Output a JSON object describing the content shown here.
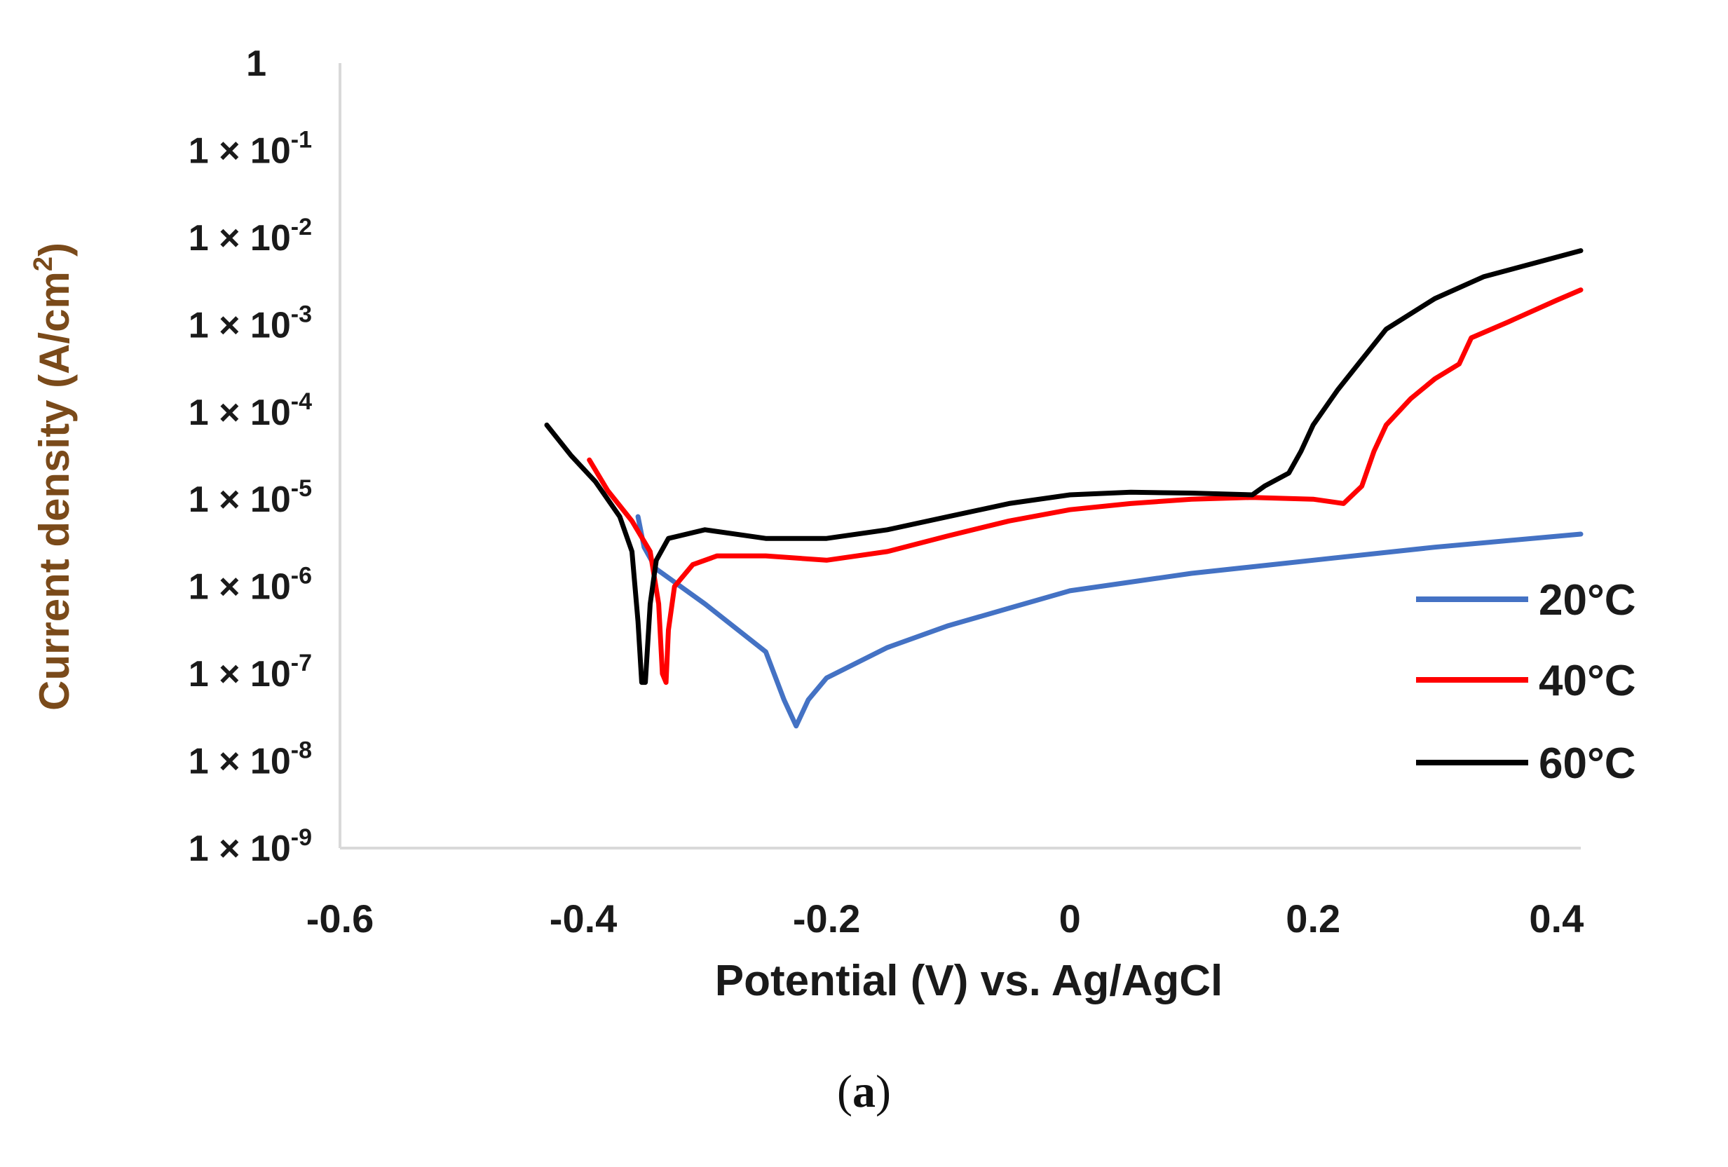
{
  "chart_data": {
    "type": "line",
    "title": "",
    "xlabel": "Potential (V) vs. Ag/AgCl",
    "ylabel_text": "Current density (A/cm",
    "ylabel_sup": "2",
    "ylabel_end": ")",
    "xlim": [
      -0.6,
      0.42
    ],
    "ylim_log10": [
      -9,
      0
    ],
    "x_ticks": [
      {
        "value": -0.6,
        "label": "-0.6"
      },
      {
        "value": -0.4,
        "label": "-0.4"
      },
      {
        "value": -0.2,
        "label": "-0.2"
      },
      {
        "value": 0,
        "label": "0"
      },
      {
        "value": 0.2,
        "label": "0.2"
      },
      {
        "value": 0.4,
        "label": "0.4"
      }
    ],
    "y_ticks": [
      {
        "exp": 0,
        "label": "1",
        "sup": ""
      },
      {
        "exp": -1,
        "label": "1 × 10",
        "sup": "-1"
      },
      {
        "exp": -2,
        "label": "1 × 10",
        "sup": "-2"
      },
      {
        "exp": -3,
        "label": "1 × 10",
        "sup": "-3"
      },
      {
        "exp": -4,
        "label": "1 × 10",
        "sup": "-4"
      },
      {
        "exp": -5,
        "label": "1 × 10",
        "sup": "-5"
      },
      {
        "exp": -6,
        "label": "1 × 10",
        "sup": "-6"
      },
      {
        "exp": -7,
        "label": "1 × 10",
        "sup": "-7"
      },
      {
        "exp": -8,
        "label": "1 × 10",
        "sup": "-8"
      },
      {
        "exp": -9,
        "label": "1 × 10",
        "sup": "-9"
      }
    ],
    "legend_position": "right",
    "series": [
      {
        "name": "20°C",
        "color": "#4472c4",
        "points": [
          [
            -0.355,
            -5.2
          ],
          [
            -0.35,
            -5.55
          ],
          [
            -0.34,
            -5.8
          ],
          [
            -0.3,
            -6.2
          ],
          [
            -0.25,
            -6.75
          ],
          [
            -0.235,
            -7.3
          ],
          [
            -0.225,
            -7.6
          ],
          [
            -0.215,
            -7.3
          ],
          [
            -0.2,
            -7.05
          ],
          [
            -0.15,
            -6.7
          ],
          [
            -0.1,
            -6.45
          ],
          [
            -0.05,
            -6.25
          ],
          [
            0,
            -6.05
          ],
          [
            0.1,
            -5.85
          ],
          [
            0.2,
            -5.7
          ],
          [
            0.3,
            -5.55
          ],
          [
            0.42,
            -5.4
          ]
        ]
      },
      {
        "name": "40°C",
        "color": "#ff0000",
        "points": [
          [
            -0.395,
            -4.55
          ],
          [
            -0.38,
            -4.9
          ],
          [
            -0.36,
            -5.25
          ],
          [
            -0.345,
            -5.6
          ],
          [
            -0.338,
            -6.2
          ],
          [
            -0.335,
            -7.0
          ],
          [
            -0.332,
            -7.1
          ],
          [
            -0.33,
            -6.5
          ],
          [
            -0.325,
            -6.0
          ],
          [
            -0.31,
            -5.75
          ],
          [
            -0.29,
            -5.65
          ],
          [
            -0.25,
            -5.65
          ],
          [
            -0.2,
            -5.7
          ],
          [
            -0.15,
            -5.6
          ],
          [
            -0.1,
            -5.42
          ],
          [
            -0.05,
            -5.25
          ],
          [
            0,
            -5.12
          ],
          [
            0.05,
            -5.05
          ],
          [
            0.1,
            -5.0
          ],
          [
            0.15,
            -4.98
          ],
          [
            0.2,
            -5.0
          ],
          [
            0.225,
            -5.05
          ],
          [
            0.24,
            -4.85
          ],
          [
            0.25,
            -4.45
          ],
          [
            0.26,
            -4.15
          ],
          [
            0.28,
            -3.85
          ],
          [
            0.3,
            -3.62
          ],
          [
            0.32,
            -3.45
          ],
          [
            0.33,
            -3.15
          ],
          [
            0.36,
            -2.97
          ],
          [
            0.4,
            -2.72
          ],
          [
            0.42,
            -2.6
          ]
        ]
      },
      {
        "name": "60°C",
        "color": "#000000",
        "points": [
          [
            -0.43,
            -4.15
          ],
          [
            -0.41,
            -4.5
          ],
          [
            -0.39,
            -4.8
          ],
          [
            -0.37,
            -5.2
          ],
          [
            -0.36,
            -5.6
          ],
          [
            -0.355,
            -6.4
          ],
          [
            -0.352,
            -7.1
          ],
          [
            -0.349,
            -7.1
          ],
          [
            -0.345,
            -6.2
          ],
          [
            -0.34,
            -5.7
          ],
          [
            -0.33,
            -5.45
          ],
          [
            -0.3,
            -5.35
          ],
          [
            -0.25,
            -5.45
          ],
          [
            -0.2,
            -5.45
          ],
          [
            -0.15,
            -5.35
          ],
          [
            -0.1,
            -5.2
          ],
          [
            -0.05,
            -5.05
          ],
          [
            0,
            -4.95
          ],
          [
            0.05,
            -4.92
          ],
          [
            0.1,
            -4.93
          ],
          [
            0.15,
            -4.95
          ],
          [
            0.16,
            -4.85
          ],
          [
            0.18,
            -4.7
          ],
          [
            0.19,
            -4.45
          ],
          [
            0.2,
            -4.15
          ],
          [
            0.22,
            -3.75
          ],
          [
            0.24,
            -3.4
          ],
          [
            0.26,
            -3.05
          ],
          [
            0.3,
            -2.7
          ],
          [
            0.34,
            -2.45
          ],
          [
            0.38,
            -2.3
          ],
          [
            0.42,
            -2.15
          ]
        ]
      }
    ]
  },
  "caption": {
    "open": "(",
    "label": "a",
    "close": ")"
  }
}
